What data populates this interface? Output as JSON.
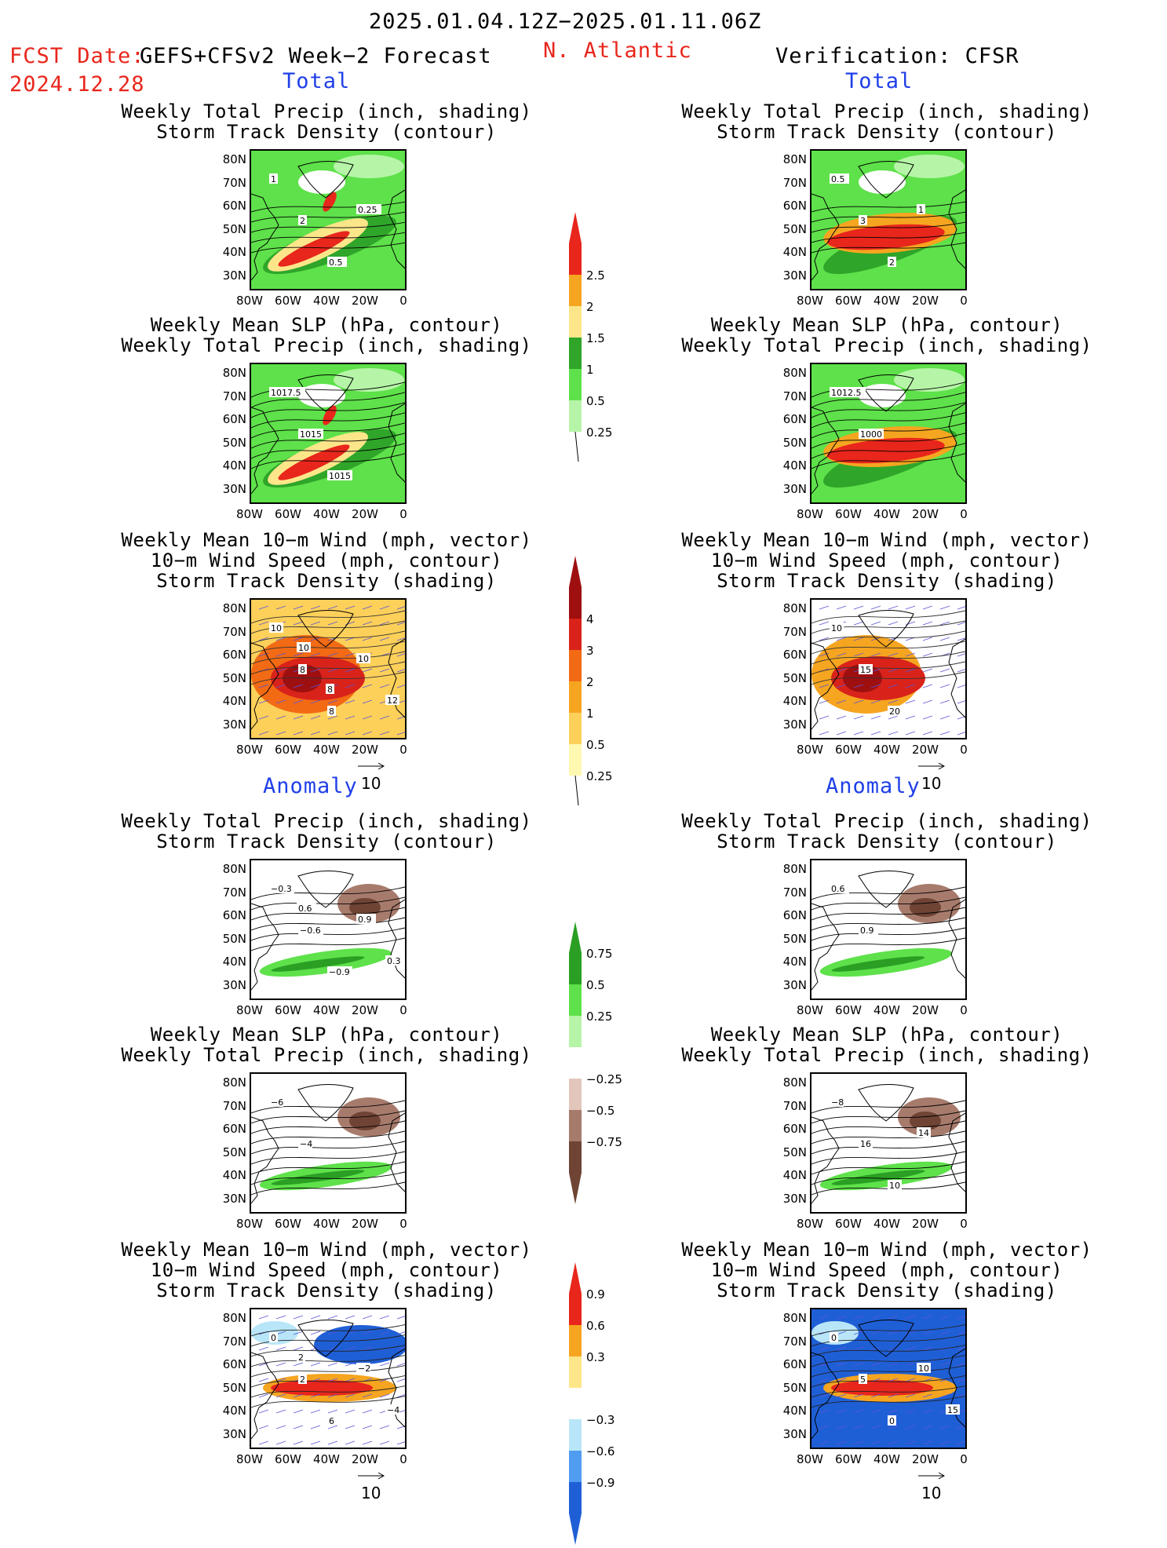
{
  "header": {
    "period": "2025.01.04.12Z−2025.01.11.06Z",
    "fcst_label": "FCST Date: ",
    "fcst_model": "GEFS+CFSv2 Week−2 Forecast",
    "fcst_date": "2024.12.28",
    "region": "N. Atlantic",
    "verification": "Verification: CFSR",
    "total_label": "Total",
    "anomaly_label": "Anomaly"
  },
  "colors": {
    "precip_total": [
      "#b6f5a8",
      "#5ee14a",
      "#2fa52a",
      "#fde68a",
      "#f6a520",
      "#e8261c"
    ],
    "storm_total": [
      "#fff8b0",
      "#fdd05a",
      "#f6a520",
      "#f26a14",
      "#d9231a",
      "#9e0f10"
    ],
    "precip_anom": [
      "#6f4435",
      "#a77b6c",
      "#e3c6bb",
      "#b6f5a8",
      "#5ee14a",
      "#2a9f24"
    ],
    "storm_anom": [
      "#1f5fd6",
      "#4f9cf0",
      "#b8e6f8",
      "#fde68a",
      "#f6a520",
      "#e8261c"
    ]
  },
  "panels": {
    "forecast_total": [
      {
        "title": [
          "Weekly Total Precip (inch, shading)",
          "Storm Track Density (contour)"
        ],
        "labels": [
          "1",
          "2",
          "0.5",
          "0.25"
        ]
      },
      {
        "title": [
          "Weekly Mean SLP (hPa, contour)",
          "Weekly Total Precip (inch, shading)"
        ],
        "labels": [
          "1017.5",
          "1015",
          "1015"
        ]
      },
      {
        "title": [
          "Weekly Mean 10−m Wind (mph, vector)",
          "10−m Wind Speed (mph, contour)",
          "Storm Track Density (shading)"
        ],
        "labels": [
          "10",
          "8",
          "8",
          "10",
          "12",
          "10",
          "8"
        ]
      }
    ],
    "verification_total": [
      {
        "title": [
          "Weekly Total Precip (inch, shading)",
          "Storm Track Density (contour)"
        ],
        "labels": [
          "0.5",
          "3",
          "2",
          "1"
        ]
      },
      {
        "title": [
          "Weekly Mean SLP (hPa, contour)",
          "Weekly Total Precip (inch, shading)"
        ],
        "labels": [
          "1012.5",
          "1000"
        ]
      },
      {
        "title": [
          "Weekly Mean 10−m Wind (mph, vector)",
          "10−m Wind Speed (mph, contour)",
          "Storm Track Density (shading)"
        ],
        "labels": [
          "10",
          "15",
          "20"
        ]
      }
    ],
    "forecast_anomaly": [
      {
        "title": [
          "Weekly Total Precip (inch, shading)",
          "Storm Track Density (contour)"
        ],
        "labels": [
          "−0.3",
          "−0.6",
          "−0.9",
          "0.9",
          "0.3",
          "0.6"
        ]
      },
      {
        "title": [
          "Weekly Mean SLP (hPa, contour)",
          "Weekly Total Precip (inch, shading)"
        ],
        "labels": [
          "−6",
          "−4"
        ]
      },
      {
        "title": [
          "Weekly Mean 10−m Wind (mph, vector)",
          "10−m Wind Speed (mph, contour)",
          "Storm Track Density (shading)"
        ],
        "labels": [
          "0",
          "2",
          "6",
          "−2",
          "−4",
          "2"
        ]
      }
    ],
    "verification_anomaly": [
      {
        "title": [
          "Weekly Total Precip (inch, shading)",
          "Storm Track Density (contour)"
        ],
        "labels": [
          "0.6",
          "0.9"
        ]
      },
      {
        "title": [
          "Weekly Mean SLP (hPa, contour)",
          "Weekly Total Precip (inch, shading)"
        ],
        "labels": [
          "−8",
          "16",
          "10",
          "14"
        ]
      },
      {
        "title": [
          "Weekly Mean 10−m Wind (mph, vector)",
          "10−m Wind Speed (mph, contour)",
          "Storm Track Density (shading)"
        ],
        "labels": [
          "0",
          "5",
          "0",
          "10",
          "15"
        ]
      }
    ]
  },
  "axes": {
    "lat_ticks": [
      "80N",
      "70N",
      "60N",
      "50N",
      "40N",
      "30N"
    ],
    "lon_ticks": [
      "80W",
      "60W",
      "40W",
      "20W",
      "0"
    ]
  },
  "wind_ref": "10",
  "colorbars": {
    "precip_total": [
      "0.25",
      "0.5",
      "1",
      "1.5",
      "2",
      "2.5"
    ],
    "storm_total": [
      "0.25",
      "0.5",
      "1",
      "2",
      "3",
      "4"
    ],
    "precip_anom": [
      "−0.75",
      "−0.5",
      "−0.25",
      "0.25",
      "0.5",
      "0.75"
    ],
    "storm_anom": [
      "−0.9",
      "−0.6",
      "−0.3",
      "0.3",
      "0.6",
      "0.9"
    ]
  },
  "chart_data": {
    "type": "heatmap",
    "title": "2025.01.04.12Z−2025.01.11.06Z",
    "region": "N. Atlantic",
    "x_axis": {
      "ticks": [
        "80W",
        "60W",
        "40W",
        "20W",
        "0"
      ],
      "range": [
        -80,
        0
      ]
    },
    "y_axis": {
      "ticks": [
        "30N",
        "40N",
        "50N",
        "60N",
        "70N",
        "80N"
      ],
      "range": [
        25,
        85
      ]
    },
    "colorbar_levels": {
      "precip_total_inch": [
        0.25,
        0.5,
        1,
        1.5,
        2,
        2.5
      ],
      "storm_track_density_total": [
        0.25,
        0.5,
        1,
        2,
        3,
        4
      ],
      "precip_anomaly_inch": [
        -0.75,
        -0.5,
        -0.25,
        0.25,
        0.5,
        0.75
      ],
      "storm_track_density_anomaly": [
        -0.9,
        -0.6,
        -0.3,
        0.3,
        0.6,
        0.9
      ]
    }
  }
}
